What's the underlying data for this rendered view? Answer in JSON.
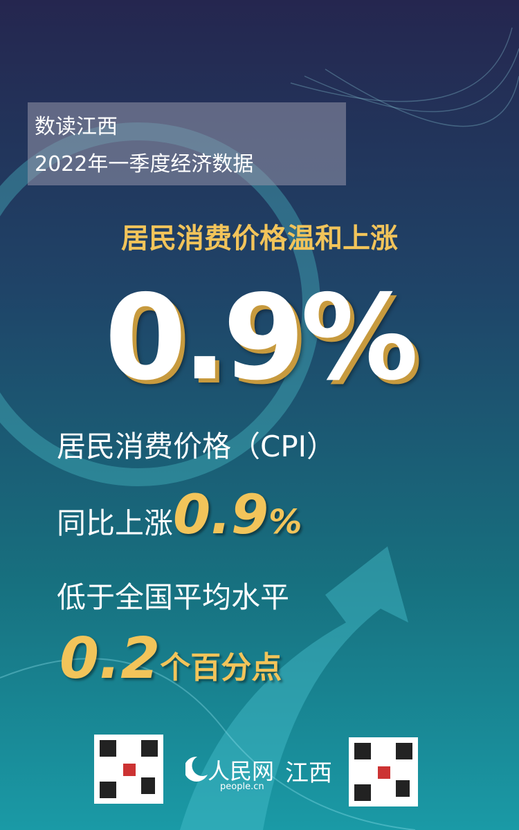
{
  "header": {
    "title": "数读江西",
    "subtitle": "2022年一季度经济数据"
  },
  "headline": "居民消费价格温和上涨",
  "big_figure": "0.9%",
  "lines": [
    {
      "text": "居民消费价格（CPI）"
    },
    {
      "text": "同比上涨",
      "figure": "0.9",
      "unit": "%"
    },
    {
      "text": "低于全国平均水平"
    },
    {
      "figure": "0.2",
      "unit": "个百分点"
    }
  ],
  "footer": {
    "logo": "人民网",
    "logo_sub": "people.cn",
    "region": "江西"
  }
}
